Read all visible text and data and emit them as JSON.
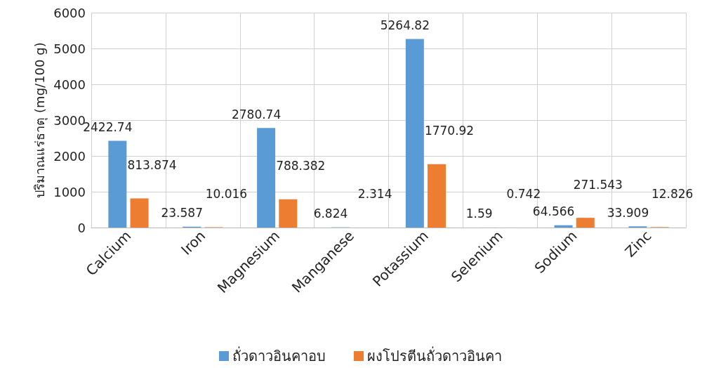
{
  "chart_data": {
    "type": "bar",
    "ylabel": "ปริมาณแร่ธาตุ (mg/100 g)",
    "categories": [
      "Calcium",
      "Iron",
      "Magnesium",
      "Manganese",
      "Potassium",
      "Selenium",
      "Sodium",
      "Zinc"
    ],
    "series": [
      {
        "name": "ถั่วดาวอินคาอบ",
        "color": "#5b9bd5",
        "values": [
          2422.74,
          23.587,
          2780.74,
          6.824,
          5264.82,
          1.59,
          64.566,
          33.909
        ]
      },
      {
        "name": "ผงโปรตีนถั่วดาวอินคา",
        "color": "#ed7d31",
        "values": [
          813.874,
          10.016,
          788.382,
          2.314,
          1770.92,
          0.742,
          271.543,
          12.826
        ]
      }
    ],
    "ylim": [
      0,
      6000
    ],
    "yticks": [
      0,
      1000,
      2000,
      3000,
      4000,
      5000,
      6000
    ],
    "grid": true,
    "legend": "bottom",
    "data_labels": true
  }
}
